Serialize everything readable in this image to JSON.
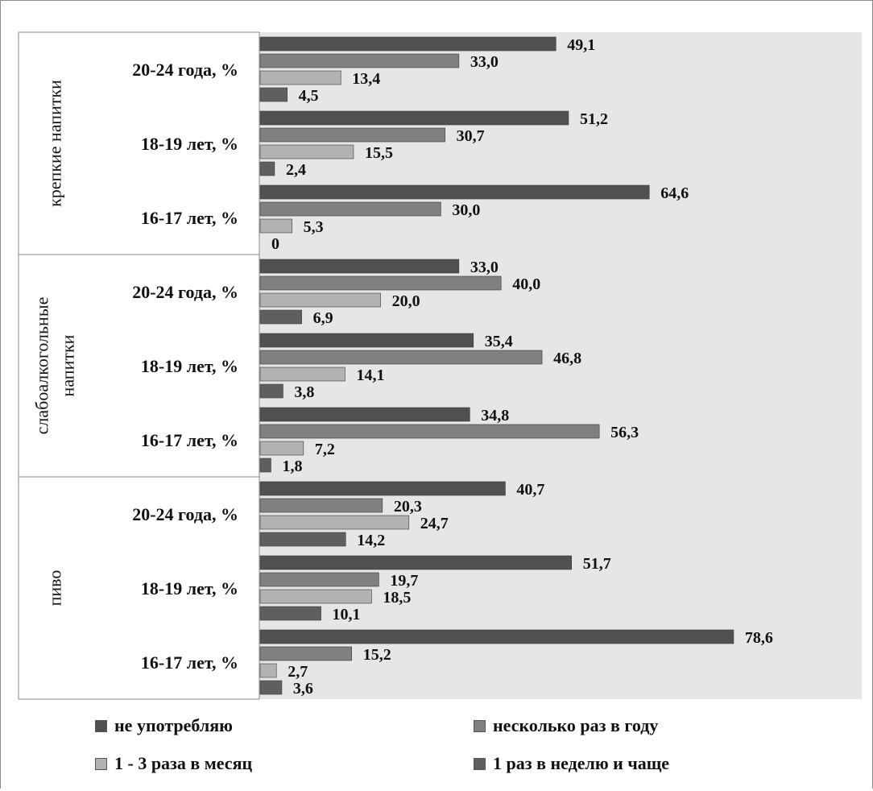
{
  "chart_data": {
    "type": "bar",
    "orientation": "horizontal",
    "colors": {
      "не употребляю": "#505050",
      "несколько раз в году": "#808080",
      "1 - 3 раза в месяц": "#b2b2b2",
      "1 раз в неделю и чаще": "#5f5f5f",
      "plot_background": "#e6e6e6"
    },
    "groups": [
      {
        "name": "крепкие напитки",
        "categories": [
          {
            "label": "20-24 года, %",
            "values": [
              49.1,
              33.0,
              13.4,
              4.5
            ],
            "labels": [
              "49,1",
              "33,0",
              "13,4",
              "4,5"
            ]
          },
          {
            "label": "18-19 лет, %",
            "values": [
              51.2,
              30.7,
              15.5,
              2.4
            ],
            "labels": [
              "51,2",
              "30,7",
              "15,5",
              "2,4"
            ]
          },
          {
            "label": "16-17 лет, %",
            "values": [
              64.6,
              30.0,
              5.3,
              0
            ],
            "labels": [
              "64,6",
              "30,0",
              "5,3",
              "0"
            ]
          }
        ]
      },
      {
        "name": "слабоалкогольные напитки",
        "categories": [
          {
            "label": "20-24 года, %",
            "values": [
              33.0,
              40.0,
              20.0,
              6.9
            ],
            "labels": [
              "33,0",
              "40,0",
              "20,0",
              "6,9"
            ]
          },
          {
            "label": "18-19 лет, %",
            "values": [
              35.4,
              46.8,
              14.1,
              3.8
            ],
            "labels": [
              "35,4",
              "46,8",
              "14,1",
              "3,8"
            ]
          },
          {
            "label": "16-17 лет, %",
            "values": [
              34.8,
              56.3,
              7.2,
              1.8
            ],
            "labels": [
              "34,8",
              "56,3",
              "7,2",
              "1,8"
            ]
          }
        ]
      },
      {
        "name": "пиво",
        "categories": [
          {
            "label": "20-24 года, %",
            "values": [
              40.7,
              20.3,
              24.7,
              14.2
            ],
            "labels": [
              "40,7",
              "20,3",
              "24,7",
              "14,2"
            ]
          },
          {
            "label": "18-19 лет, %",
            "values": [
              51.7,
              19.7,
              18.5,
              10.1
            ],
            "labels": [
              "51,7",
              "19,7",
              "18,5",
              "10,1"
            ]
          },
          {
            "label": "16-17 лет, %",
            "values": [
              78.6,
              15.2,
              2.7,
              3.6
            ],
            "labels": [
              "78,6",
              "15,2",
              "2,7",
              "3,6"
            ]
          }
        ]
      }
    ],
    "series": [
      {
        "name": "не употребляю"
      },
      {
        "name": "несколько раз в году"
      },
      {
        "name": "1 - 3 раза в месяц"
      },
      {
        "name": "1 раз в неделю и чаще"
      }
    ],
    "xlim": [
      0,
      100
    ],
    "grid": false,
    "legend_position": "bottom"
  }
}
